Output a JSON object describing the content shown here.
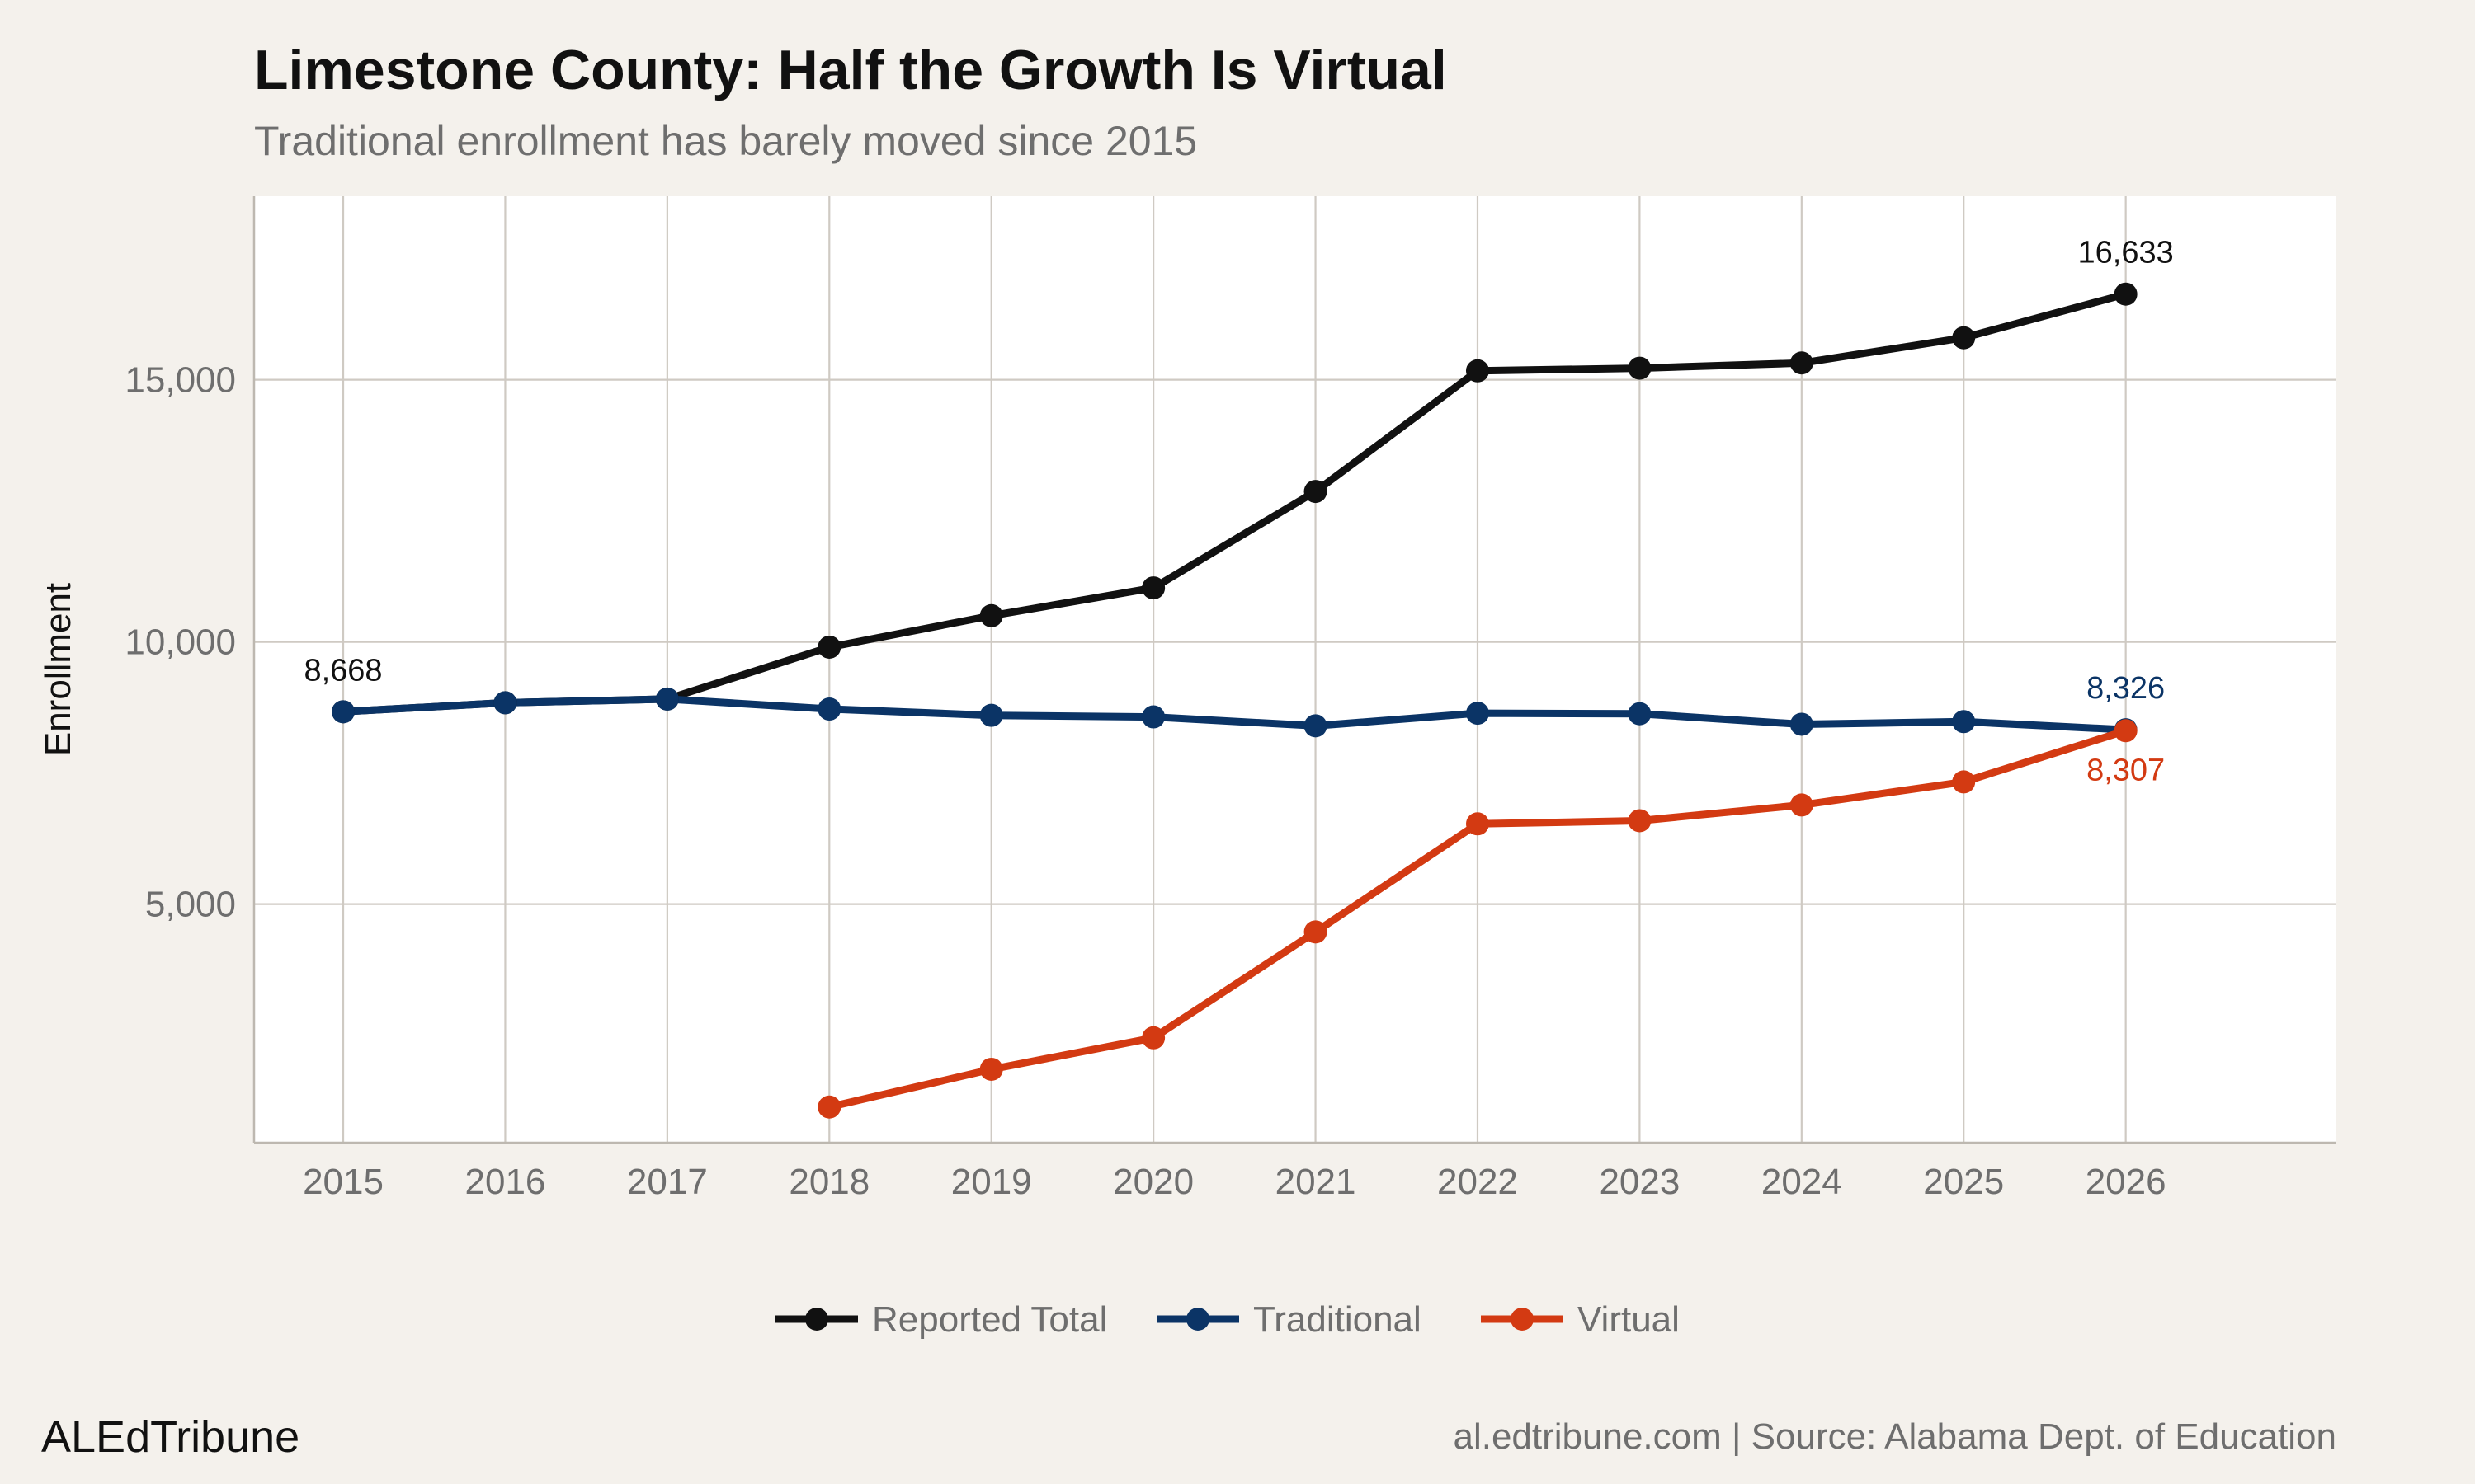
{
  "header": {
    "title": "Limestone County: Half the Growth Is Virtual",
    "subtitle": "Traditional enrollment has barely moved since 2015"
  },
  "footer": {
    "brand": "ALEdTribune",
    "source": "al.edtribune.com | Source: Alabama Dept. of Education"
  },
  "colors": {
    "background": "#f4f1ec",
    "panel": "#ffffff",
    "grid": "#cfcac3",
    "total": "#111111",
    "traditional": "#0b3466",
    "virtual": "#d33a12"
  },
  "chart_data": {
    "type": "line",
    "title": "Limestone County: Half the Growth Is Virtual",
    "subtitle": "Traditional enrollment has barely moved since 2015",
    "xlabel": "",
    "ylabel": "Enrollment",
    "x": [
      2015,
      2016,
      2017,
      2018,
      2019,
      2020,
      2021,
      2022,
      2023,
      2024,
      2025,
      2026
    ],
    "x_ticks": [
      "2015",
      "2016",
      "2017",
      "2018",
      "2019",
      "2020",
      "2021",
      "2022",
      "2023",
      "2024",
      "2025",
      "2026"
    ],
    "xlim": [
      2014.45,
      2027.3
    ],
    "y_ticks": [
      5000,
      10000,
      15000
    ],
    "y_tick_labels": [
      "5,000",
      "10,000",
      "15,000"
    ],
    "ylim": [
      450,
      18500
    ],
    "grid": true,
    "legend": {
      "position": "bottom"
    },
    "series": [
      {
        "name": "Reported Total",
        "color": "#111111",
        "values": [
          8668,
          8840,
          8910,
          9900,
          10500,
          11030,
          12870,
          15170,
          15220,
          15320,
          15800,
          16633
        ]
      },
      {
        "name": "Traditional",
        "color": "#0b3466",
        "values": [
          8668,
          8840,
          8910,
          8720,
          8600,
          8570,
          8400,
          8640,
          8630,
          8430,
          8480,
          8326
        ]
      },
      {
        "name": "Virtual",
        "color": "#d33a12",
        "values": [
          null,
          null,
          null,
          1130,
          1850,
          2450,
          4470,
          6530,
          6590,
          6890,
          7330,
          8307
        ]
      }
    ],
    "annotations": [
      {
        "text": "8,668",
        "x": 2015,
        "y": 8668,
        "series": "Reported Total",
        "placement": "above"
      },
      {
        "text": "16,633",
        "x": 2026,
        "y": 16633,
        "series": "Reported Total",
        "placement": "above"
      },
      {
        "text": "8,326",
        "x": 2026,
        "y": 8326,
        "series": "Traditional",
        "placement": "above"
      },
      {
        "text": "8,307",
        "x": 2026,
        "y": 8307,
        "series": "Virtual",
        "placement": "below"
      }
    ]
  }
}
